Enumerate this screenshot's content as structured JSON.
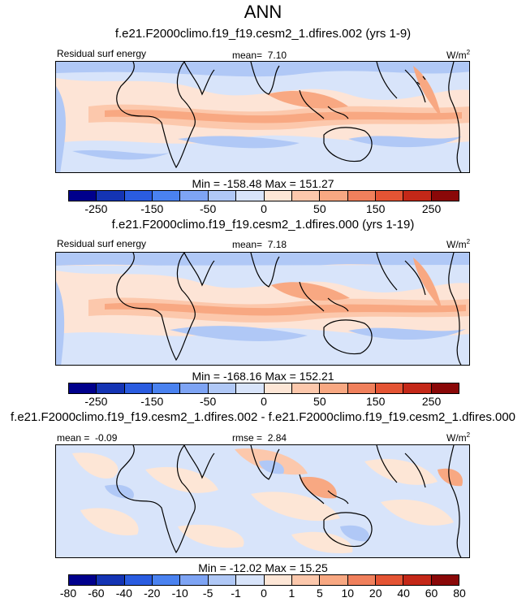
{
  "title": "ANN",
  "colors": [
    "#00008c",
    "#1434b4",
    "#2a5ce0",
    "#4a82f0",
    "#7ea4f4",
    "#b0c8f6",
    "#d8e4fa",
    "#fde6d6",
    "#fcc8ac",
    "#f8a882",
    "#f0805c",
    "#e45434",
    "#c42818",
    "#8a0808"
  ],
  "panels": [
    {
      "case": "f.e21.F2000climo.f19_f19.cesm2_1.dfires.002 (yrs 1-9)",
      "variable": "Residual surf energy",
      "stat_label": "mean=",
      "stat_value": "7.10",
      "units": "W/m",
      "units_sup": "2",
      "minmax": "Min = -158.48 Max = 151.27",
      "ticks": [
        "-250",
        "-150",
        "-50",
        "0",
        "50",
        "150",
        "250"
      ]
    },
    {
      "case": "f.e21.F2000climo.f19_f19.cesm2_1.dfires.000 (yrs 1-19)",
      "variable": "Residual surf energy",
      "stat_label": "mean=",
      "stat_value": "7.18",
      "units": "W/m",
      "units_sup": "2",
      "minmax": "Min = -168.16 Max = 152.21",
      "ticks": [
        "-250",
        "-150",
        "-50",
        "0",
        "50",
        "150",
        "250"
      ]
    },
    {
      "case": "f.e21.F2000climo.f19_f19.cesm2_1.dfires.002 - f.e21.F2000climo.f19_f19.cesm2_1.dfires.000",
      "left_label": "mean =",
      "left_value": "-0.09",
      "stat_label": "rmse =",
      "stat_value": "2.84",
      "units": "W/m",
      "units_sup": "2",
      "minmax": "Min = -12.02 Max =  15.25",
      "ticks": [
        "-80",
        "-60",
        "-40",
        "-20",
        "-10",
        "-5",
        "-1",
        "0",
        "1",
        "5",
        "10",
        "20",
        "40",
        "60",
        "80"
      ]
    }
  ]
}
